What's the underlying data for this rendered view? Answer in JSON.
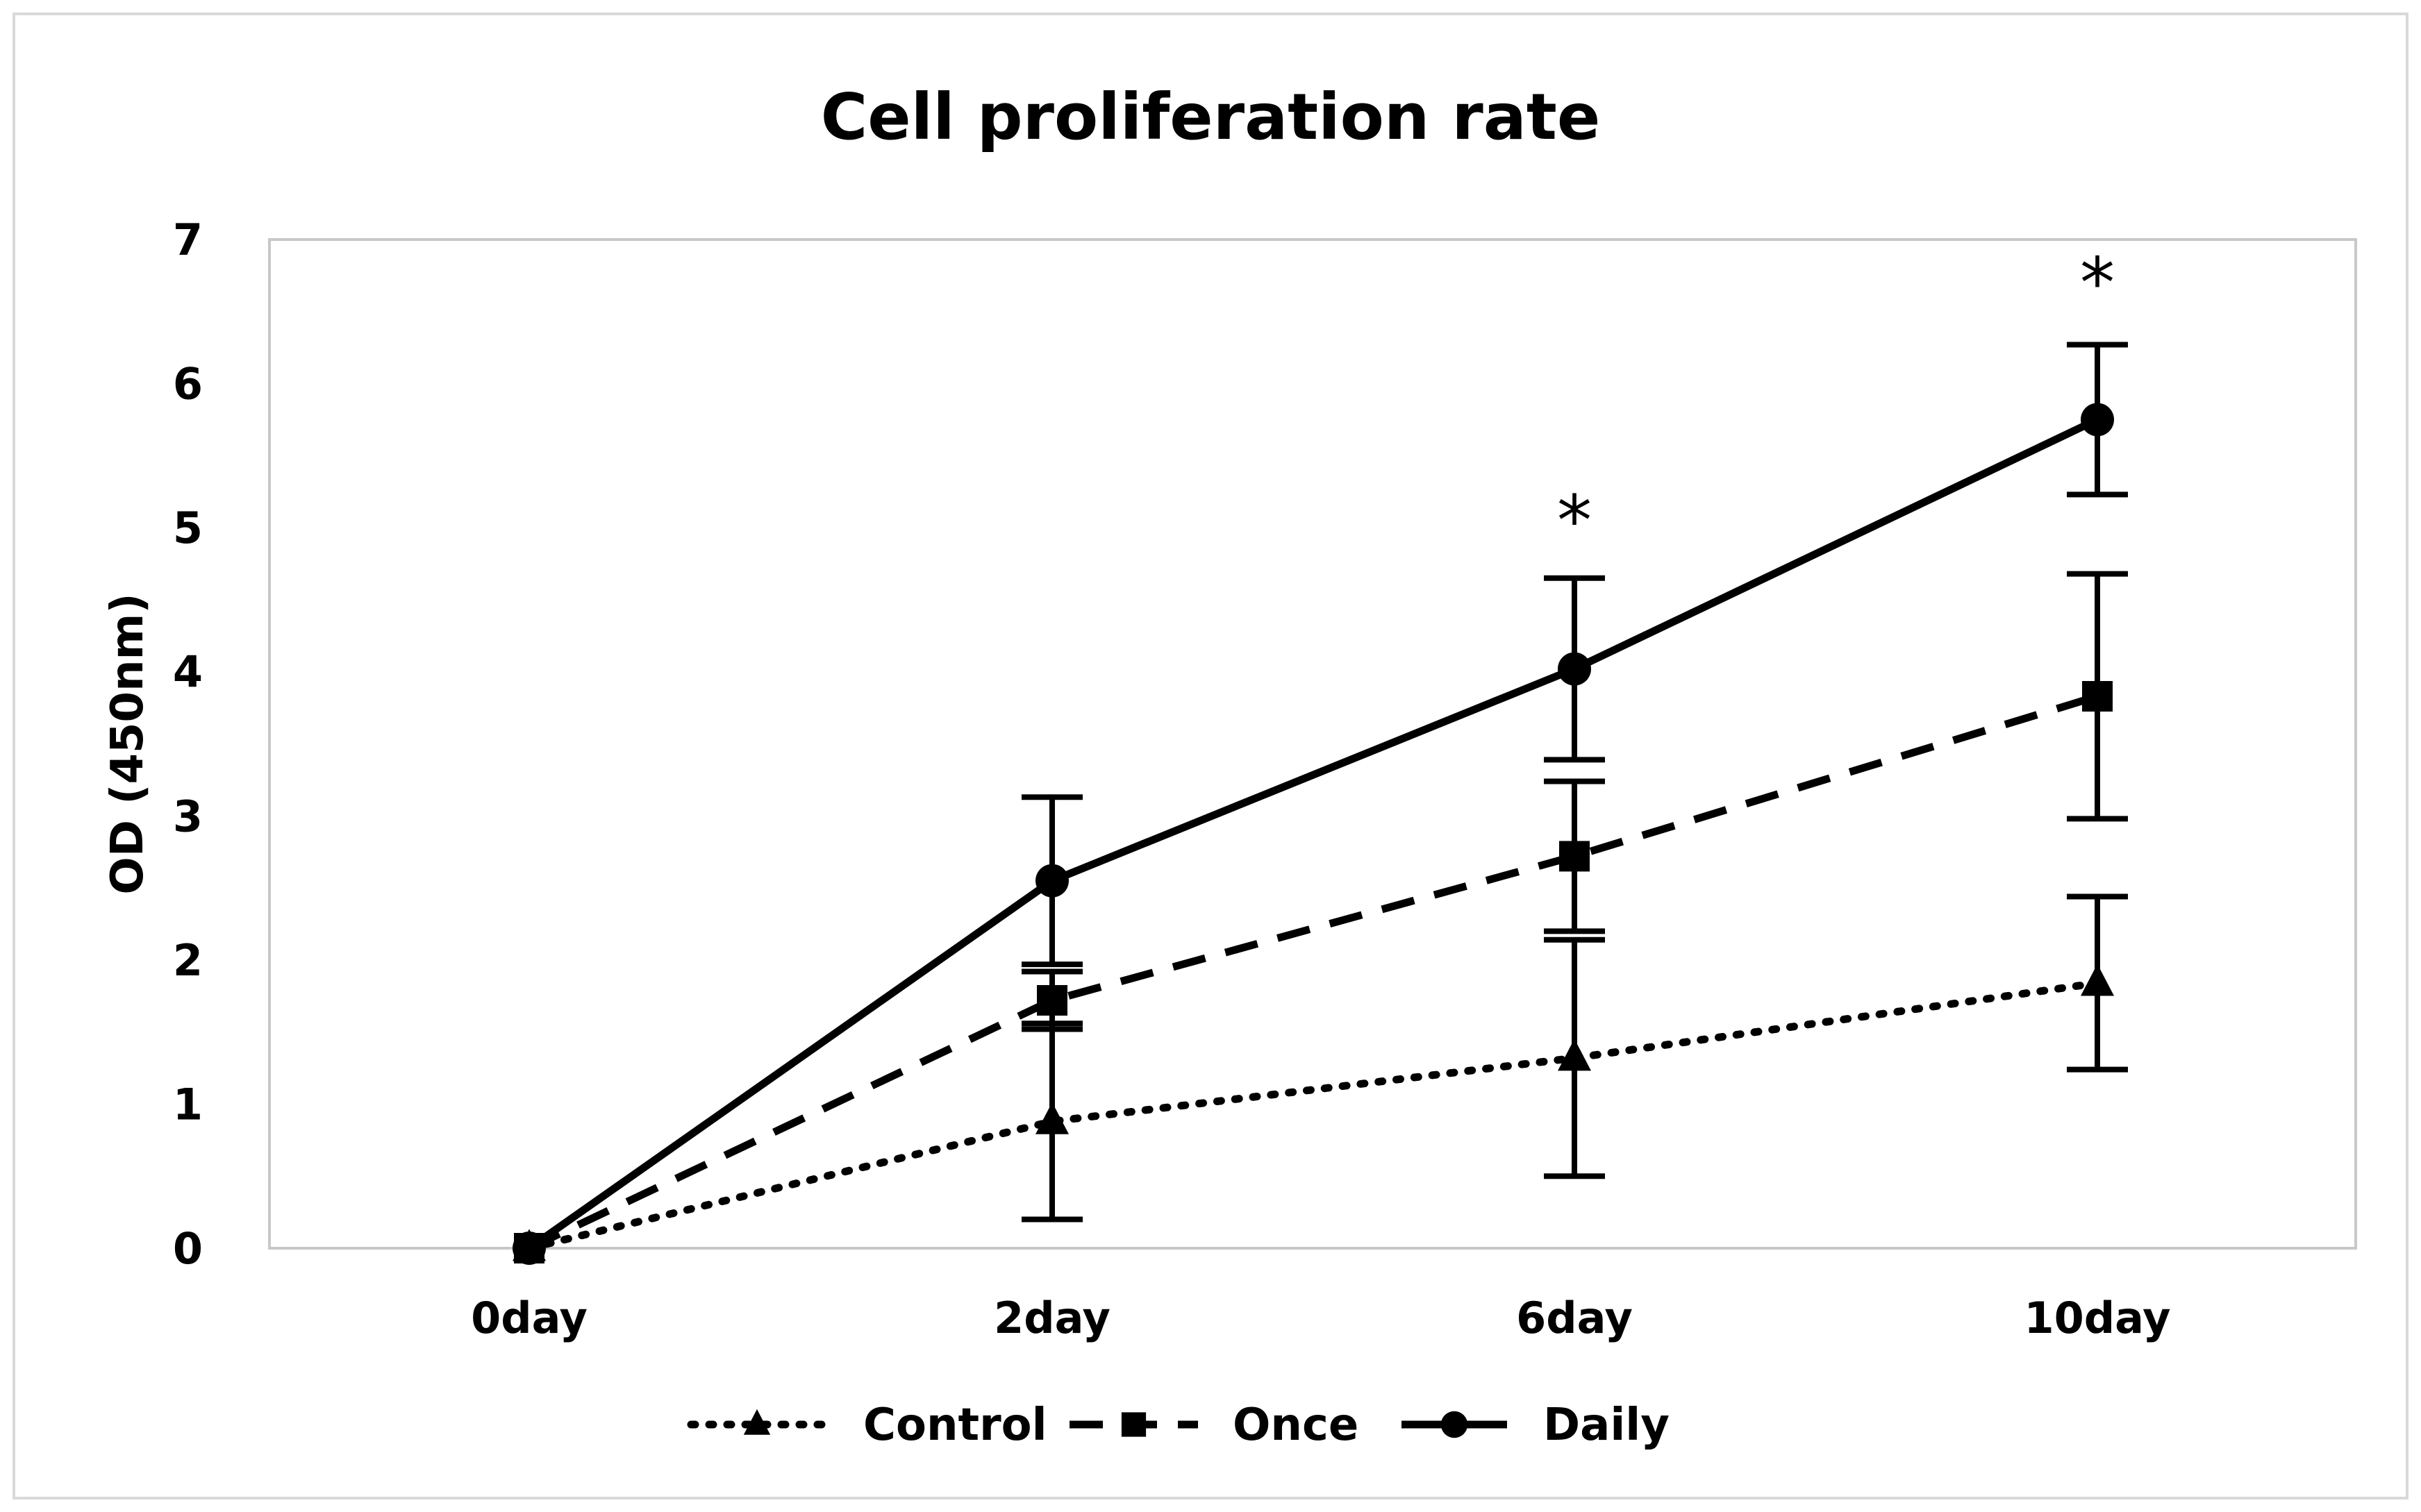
{
  "chart_data": {
    "type": "line",
    "title": "Cell proliferation rate",
    "xlabel": "",
    "ylabel": "OD (450nm)",
    "categories": [
      "0day",
      "2day",
      "6day",
      "10day"
    ],
    "ylim": [
      0,
      7
    ],
    "yticks": [
      "0",
      "1",
      "2",
      "3",
      "4",
      "5",
      "6",
      "7"
    ],
    "grid": false,
    "legend_position": "bottom",
    "series": [
      {
        "name": "Control",
        "style": "dotted",
        "marker": "triangle",
        "values": [
          0,
          0.88,
          1.32,
          1.84
        ],
        "error": [
          0,
          0.68,
          0.82,
          0.6
        ]
      },
      {
        "name": "Once",
        "style": "dashed",
        "marker": "square",
        "values": [
          0,
          1.72,
          2.72,
          3.83
        ],
        "error": [
          0,
          0.2,
          0.52,
          0.85
        ]
      },
      {
        "name": "Daily",
        "style": "solid",
        "marker": "circle",
        "values": [
          0,
          2.55,
          4.02,
          5.75
        ],
        "error": [
          0,
          0.58,
          0.63,
          0.52
        ]
      }
    ],
    "annotations": [
      {
        "category": "6day",
        "y": 5.1,
        "text": "*"
      },
      {
        "category": "10day",
        "y": 6.75,
        "text": "*"
      }
    ],
    "colors": {
      "line": "#000000",
      "frame": "#c8c8c8",
      "border": "#d9d9d9"
    }
  }
}
